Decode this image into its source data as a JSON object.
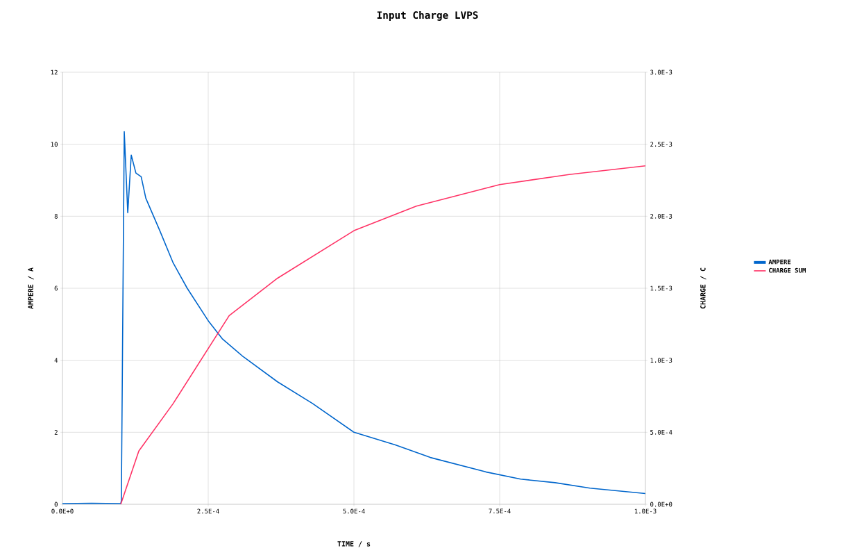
{
  "chart_data": {
    "type": "line",
    "title": "Input Charge LVPS",
    "xlabel": "TIME / s",
    "ylabel": "AMPERE / A",
    "y2label": "CHARGE / C",
    "xlim": [
      0,
      0.001
    ],
    "xticks": [
      {
        "value": 0,
        "label": "0.0E+0"
      },
      {
        "value": 0.00025,
        "label": "2.5E-4"
      },
      {
        "value": 0.0005,
        "label": "5.0E-4"
      },
      {
        "value": 0.00075,
        "label": "7.5E-4"
      },
      {
        "value": 0.001,
        "label": "1.0E-3"
      }
    ],
    "ylim": [
      0,
      12
    ],
    "yticks": [
      0,
      2,
      4,
      6,
      8,
      10,
      12
    ],
    "y2lim": [
      0,
      0.003
    ],
    "y2ticks": [
      {
        "value": 0,
        "label": "0.0E+0"
      },
      {
        "value": 0.0005,
        "label": "5.0E-4"
      },
      {
        "value": 0.001,
        "label": "1.0E-3"
      },
      {
        "value": 0.0015,
        "label": "1.5E-3"
      },
      {
        "value": 0.002,
        "label": "2.0E-3"
      },
      {
        "value": 0.0025,
        "label": "2.5E-3"
      },
      {
        "value": 0.003,
        "label": "3.0E-3"
      }
    ],
    "grid": true,
    "legend": "right",
    "series": [
      {
        "name": "AMPERE",
        "color": "#0066cc",
        "x": [
          0,
          5e-05,
          0.0001,
          0.000101,
          0.000106,
          0.000112,
          0.000118,
          0.000126,
          0.000135,
          0.000143,
          0.000167,
          0.00019,
          0.000214,
          0.00025,
          0.000274,
          0.00031,
          0.000369,
          0.000429,
          0.0005,
          0.000571,
          0.000631,
          0.000726,
          0.000786,
          0.000845,
          0.000905,
          0.001
        ],
        "values": [
          0.02,
          0.03,
          0.02,
          0.1,
          10.35,
          8.1,
          9.7,
          9.2,
          9.1,
          8.5,
          7.6,
          6.7,
          6.0,
          5.1,
          4.6,
          4.1,
          3.4,
          2.8,
          2.0,
          1.65,
          1.3,
          0.9,
          0.7,
          0.6,
          0.45,
          0.3
        ]
      },
      {
        "name": "CHARGE SUM",
        "color": "#ff3366",
        "axis": "y2",
        "x": [
          0.0001,
          0.000131,
          0.00019,
          0.000286,
          0.000369,
          0.0005,
          0.000607,
          0.00075,
          0.000869,
          0.001
        ],
        "values": [
          0,
          0.00037,
          0.0007,
          0.00131,
          0.00157,
          0.0019,
          0.00207,
          0.00222,
          0.00229,
          0.00235
        ]
      }
    ]
  }
}
